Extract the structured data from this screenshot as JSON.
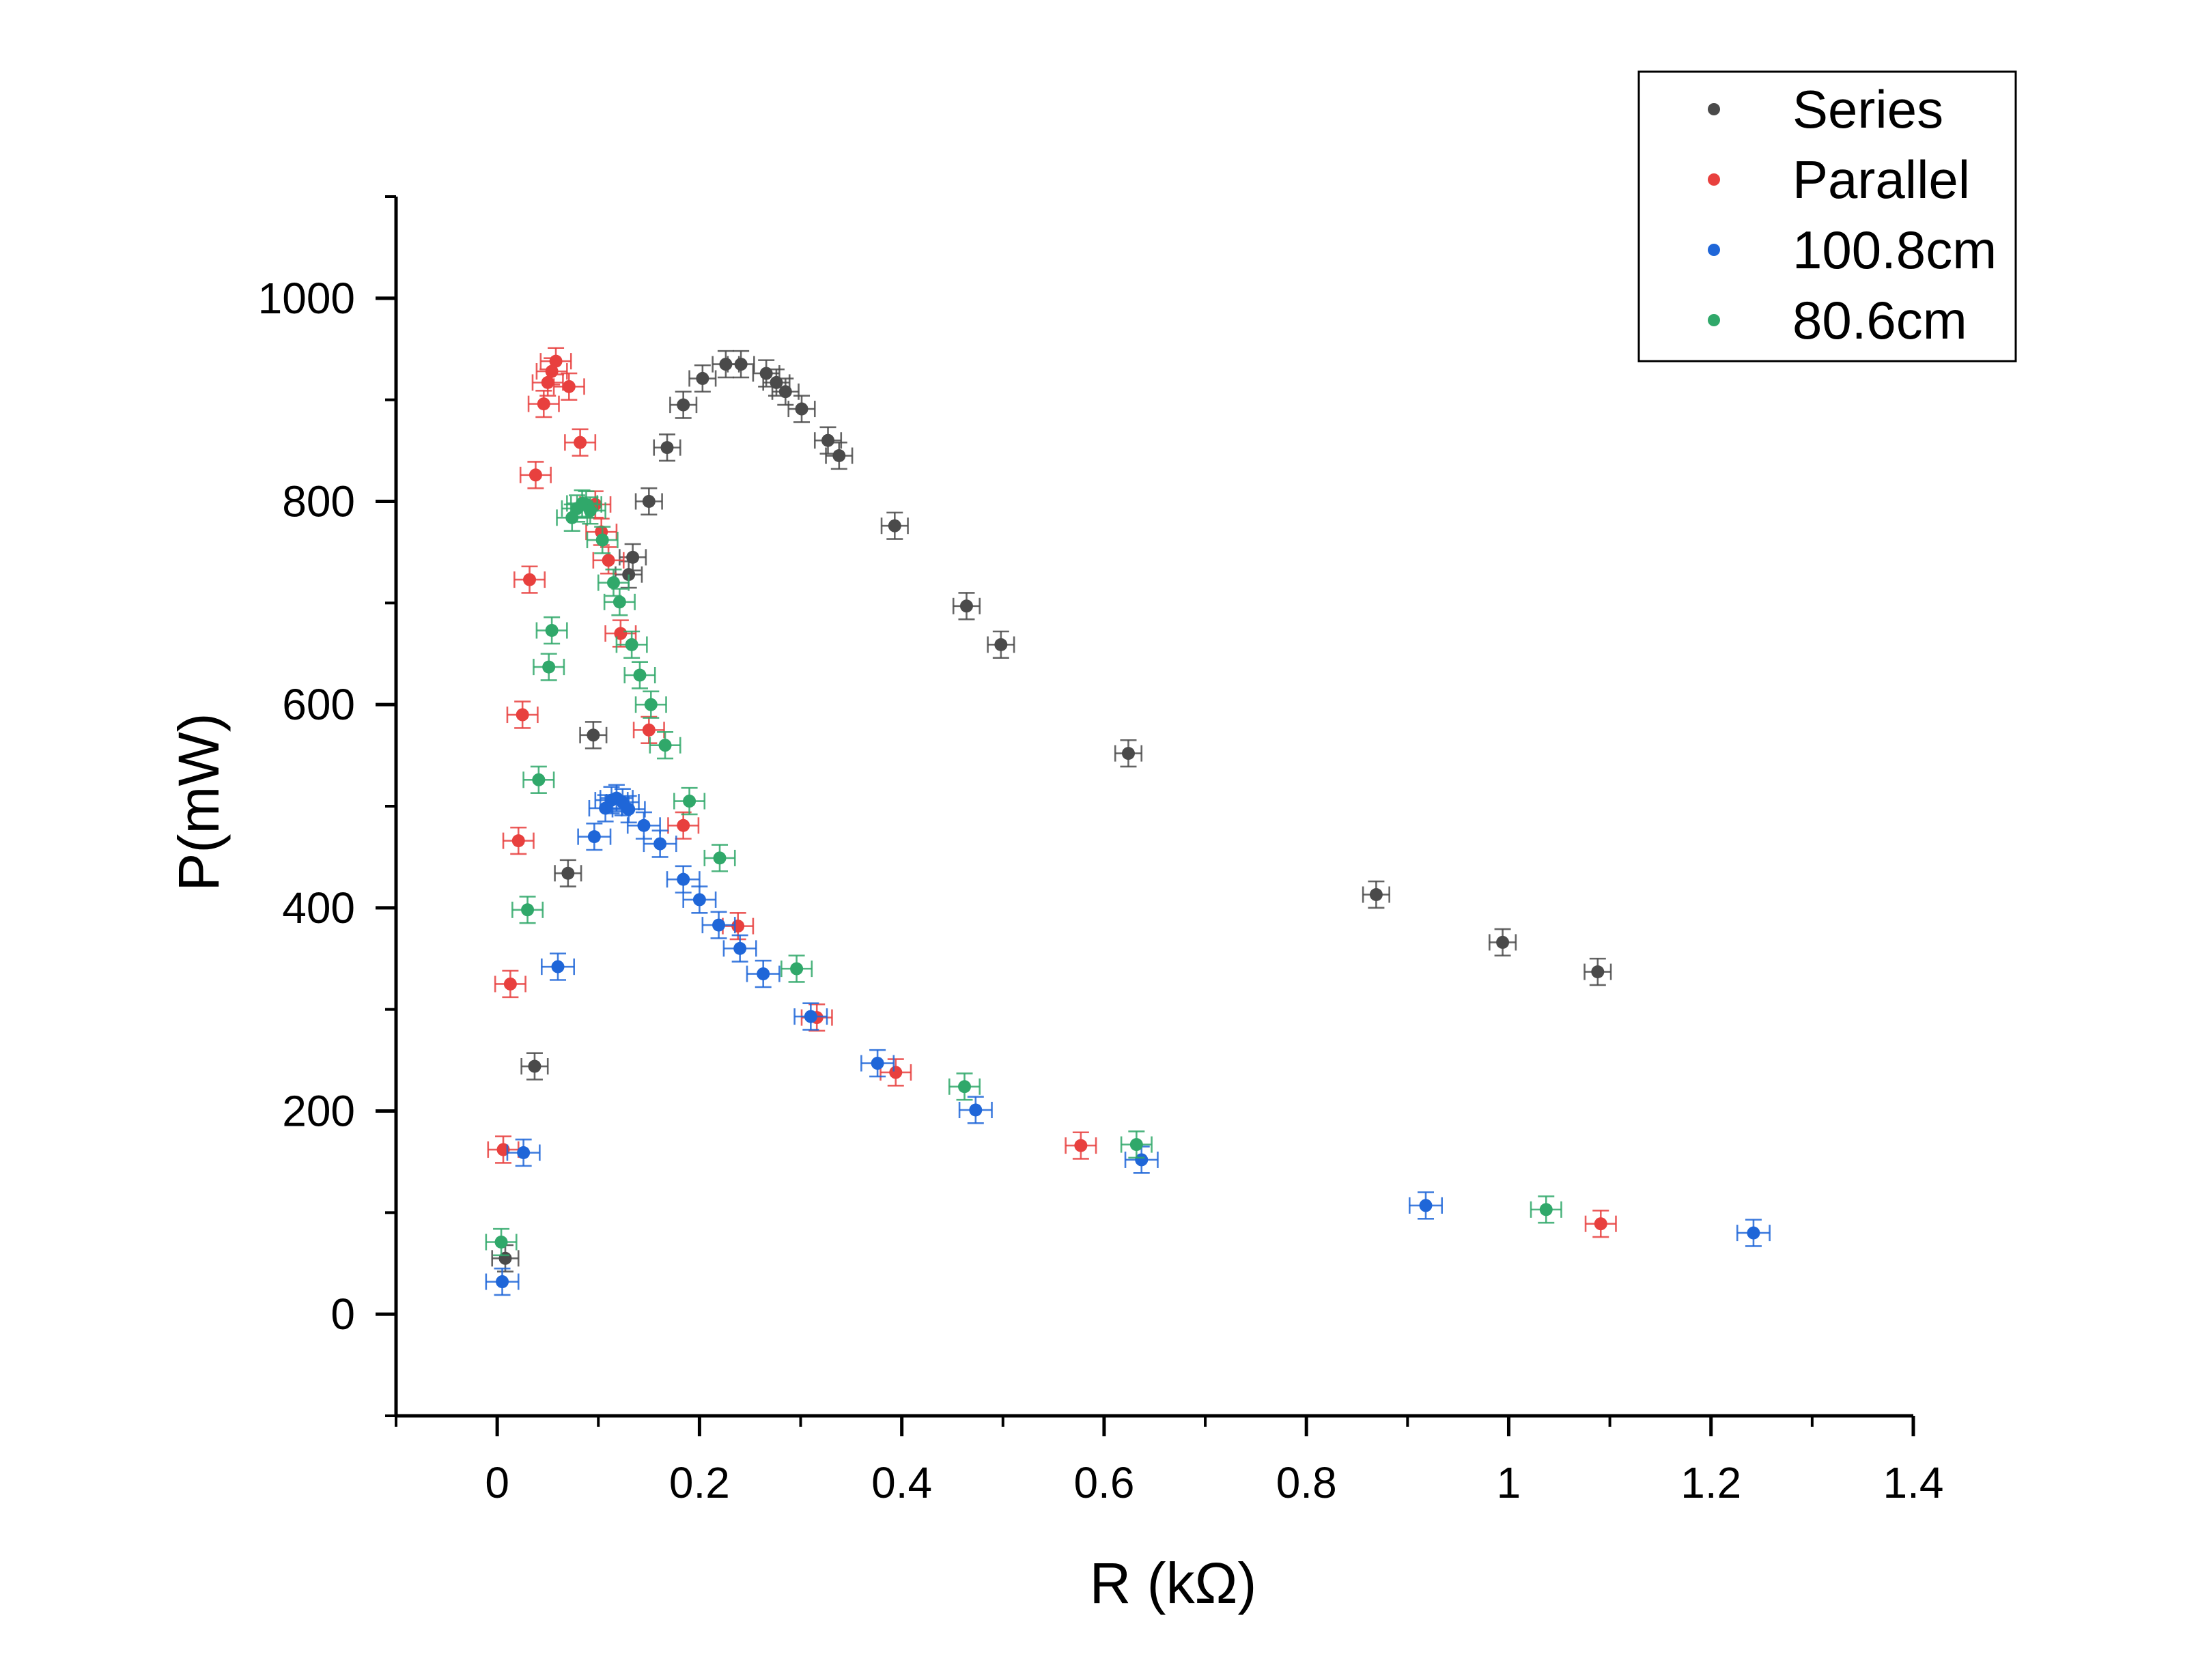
{
  "chart_data": {
    "type": "scatter",
    "xlabel": "R (kΩ)",
    "ylabel": "P(mW)",
    "xlim": [
      -0.1,
      1.4
    ],
    "ylim": [
      -100,
      1100
    ],
    "xticks": [
      "0",
      "0.2",
      "0.4",
      "0.6",
      "0.8",
      "1",
      "1.2",
      "1.4"
    ],
    "yticks": [
      "0",
      "200",
      "400",
      "600",
      "800",
      "1000"
    ],
    "grid": false,
    "legend_position": "top-right",
    "error_bars": true,
    "series": [
      {
        "name": "Series",
        "color": "#4a4a4a",
        "points": [
          [
            0.008,
            55
          ],
          [
            0.037,
            244
          ],
          [
            0.07,
            434
          ],
          [
            0.095,
            570
          ],
          [
            0.13,
            728
          ],
          [
            0.134,
            745
          ],
          [
            0.15,
            800
          ],
          [
            0.168,
            853
          ],
          [
            0.184,
            895
          ],
          [
            0.203,
            921
          ],
          [
            0.226,
            935
          ],
          [
            0.241,
            935
          ],
          [
            0.266,
            926
          ],
          [
            0.276,
            917
          ],
          [
            0.285,
            908
          ],
          [
            0.301,
            891
          ],
          [
            0.327,
            860
          ],
          [
            0.338,
            845
          ],
          [
            0.393,
            776
          ],
          [
            0.464,
            697
          ],
          [
            0.498,
            659
          ],
          [
            0.624,
            552
          ],
          [
            0.869,
            413
          ],
          [
            0.994,
            366
          ],
          [
            1.088,
            337
          ]
        ],
        "x_err": 0.013,
        "y_err": 13
      },
      {
        "name": "Parallel",
        "color": "#e8403e",
        "points": [
          [
            0.006,
            162
          ],
          [
            0.013,
            325
          ],
          [
            0.021,
            466
          ],
          [
            0.025,
            590
          ],
          [
            0.032,
            723
          ],
          [
            0.038,
            826
          ],
          [
            0.046,
            896
          ],
          [
            0.05,
            917
          ],
          [
            0.054,
            928
          ],
          [
            0.058,
            938
          ],
          [
            0.071,
            913
          ],
          [
            0.082,
            858
          ],
          [
            0.097,
            797
          ],
          [
            0.103,
            770
          ],
          [
            0.11,
            742
          ],
          [
            0.122,
            670
          ],
          [
            0.15,
            575
          ],
          [
            0.184,
            481
          ],
          [
            0.238,
            382
          ],
          [
            0.316,
            292
          ],
          [
            0.394,
            238
          ],
          [
            0.577,
            166
          ],
          [
            1.091,
            89
          ]
        ],
        "x_err": 0.015,
        "y_err": 13
      },
      {
        "name": "100.8cm",
        "color": "#1f66d8",
        "points": [
          [
            0.005,
            32
          ],
          [
            0.026,
            159
          ],
          [
            0.06,
            342
          ],
          [
            0.096,
            470
          ],
          [
            0.107,
            498
          ],
          [
            0.113,
            506
          ],
          [
            0.118,
            508
          ],
          [
            0.124,
            504
          ],
          [
            0.13,
            497
          ],
          [
            0.145,
            481
          ],
          [
            0.161,
            463
          ],
          [
            0.184,
            428
          ],
          [
            0.2,
            408
          ],
          [
            0.219,
            383
          ],
          [
            0.24,
            360
          ],
          [
            0.263,
            335
          ],
          [
            0.31,
            293
          ],
          [
            0.376,
            247
          ],
          [
            0.473,
            201
          ],
          [
            0.637,
            152
          ],
          [
            0.918,
            107
          ],
          [
            1.242,
            80
          ]
        ],
        "x_err": 0.016,
        "y_err": 13
      },
      {
        "name": "80.6cm",
        "color": "#30a86a",
        "points": [
          [
            0.004,
            71
          ],
          [
            0.03,
            398
          ],
          [
            0.041,
            526
          ],
          [
            0.051,
            637
          ],
          [
            0.054,
            673
          ],
          [
            0.074,
            784
          ],
          [
            0.079,
            793
          ],
          [
            0.084,
            798
          ],
          [
            0.088,
            797
          ],
          [
            0.092,
            791
          ],
          [
            0.104,
            762
          ],
          [
            0.115,
            720
          ],
          [
            0.121,
            701
          ],
          [
            0.133,
            659
          ],
          [
            0.141,
            629
          ],
          [
            0.152,
            600
          ],
          [
            0.166,
            560
          ],
          [
            0.19,
            505
          ],
          [
            0.22,
            449
          ],
          [
            0.296,
            340
          ],
          [
            0.462,
            224
          ],
          [
            0.632,
            167
          ],
          [
            1.037,
            103
          ]
        ],
        "x_err": 0.015,
        "y_err": 13
      }
    ]
  }
}
